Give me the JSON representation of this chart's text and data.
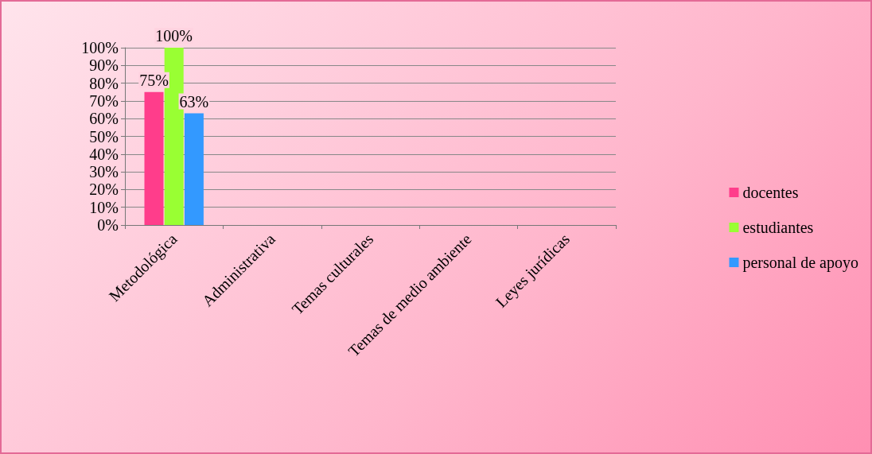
{
  "chart_data": {
    "type": "bar",
    "categories": [
      "Metodológica",
      "Administrativa",
      "Temas culturales",
      "Temas de medio ambiente",
      "Leyes jurídicas"
    ],
    "series": [
      {
        "name": "docentes",
        "color": "#ff3d8b",
        "values": [
          75,
          0,
          0,
          0,
          null
        ],
        "value_labels": [
          "75%",
          null,
          null,
          null,
          null
        ]
      },
      {
        "name": "estudiantes",
        "color": "#99ff33",
        "values": [
          100,
          null,
          null,
          null,
          null
        ],
        "value_labels": [
          "100%",
          null,
          null,
          null,
          null
        ]
      },
      {
        "name": "personal de apoyo",
        "color": "#3399ff",
        "values": [
          63,
          null,
          null,
          null,
          null
        ],
        "value_labels": [
          "63%",
          null,
          null,
          null,
          null
        ]
      }
    ],
    "ylim": [
      0,
      100
    ],
    "yticks": [
      {
        "value": 0,
        "label": "0%"
      },
      {
        "value": 10,
        "label": "10%"
      },
      {
        "value": 20,
        "label": "20%"
      },
      {
        "value": 30,
        "label": "30%"
      },
      {
        "value": 40,
        "label": "40%"
      },
      {
        "value": 50,
        "label": "50%"
      },
      {
        "value": 60,
        "label": "60%"
      },
      {
        "value": 70,
        "label": "70%"
      },
      {
        "value": 80,
        "label": "80%"
      },
      {
        "value": 90,
        "label": "90%"
      },
      {
        "value": 100,
        "label": "100%"
      }
    ],
    "grid": "y",
    "legend": "right"
  }
}
